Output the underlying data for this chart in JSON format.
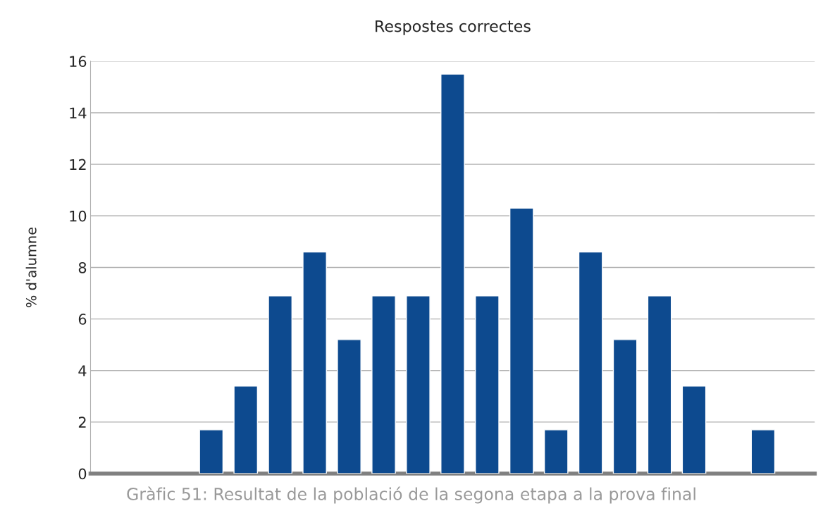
{
  "chart_data": {
    "type": "bar",
    "title": "Respostes correctes",
    "ylabel": "% d'alumne",
    "categories": [
      null,
      null,
      null,
      null,
      null,
      null,
      null,
      null,
      null,
      null,
      null,
      null,
      null,
      null,
      null,
      null,
      null,
      null,
      null,
      null,
      null
    ],
    "values": [
      null,
      null,
      null,
      1.7,
      3.4,
      6.9,
      8.6,
      5.2,
      6.9,
      6.9,
      15.5,
      6.9,
      10.3,
      1.7,
      8.6,
      5.2,
      6.9,
      3.4,
      null,
      1.7,
      null
    ],
    "color": "#0d4a8f",
    "ylim": [
      0,
      16
    ],
    "yticks": [
      0,
      2,
      4,
      6,
      8,
      10,
      12,
      14,
      16
    ],
    "grid": "y",
    "annotations": [
      "Gràfic 51: Resultat de la població de la segona etapa a la prova final"
    ]
  }
}
